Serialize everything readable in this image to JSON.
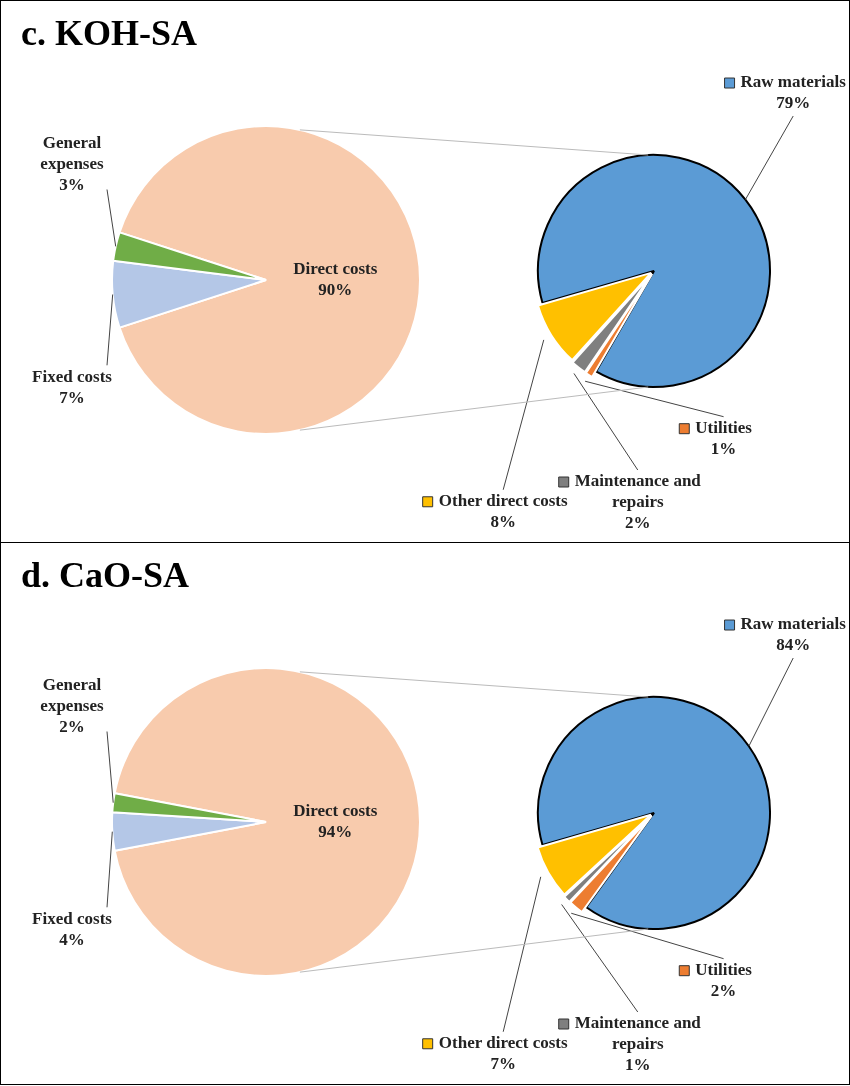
{
  "chart_data": [
    {
      "type": "pie",
      "title": "c. KOH-SA",
      "categories": [
        "Direct costs",
        "Fixed costs",
        "General expenses"
      ],
      "values": [
        90,
        7,
        3
      ],
      "colors": [
        "#f8cbad",
        "#b4c7e7",
        "#70ad47"
      ],
      "value_labels": [
        "90%",
        "7%",
        "3%"
      ]
    },
    {
      "type": "pie",
      "categories": [
        "Raw materials",
        "Utilities",
        "Maintenance and repairs",
        "Other direct costs"
      ],
      "values": [
        79,
        1,
        2,
        8
      ],
      "colors": [
        "#5b9bd5",
        "#ed7d31",
        "#7f7f7f",
        "#ffc000"
      ],
      "value_labels": [
        "79%",
        "1%",
        "2%",
        "8%"
      ],
      "legend": "bottom left"
    },
    {
      "type": "pie",
      "title": "d. CaO-SA",
      "categories": [
        "Direct costs",
        "Fixed costs",
        "General expenses"
      ],
      "values": [
        94,
        4,
        2
      ],
      "colors": [
        "#f8cbad",
        "#b4c7e7",
        "#70ad47"
      ],
      "value_labels": [
        "94%",
        "4%",
        "2%"
      ]
    },
    {
      "type": "pie",
      "categories": [
        "Raw materials",
        "Utilities",
        "Maintenance and repairs",
        "Other direct costs"
      ],
      "values": [
        84,
        2,
        1,
        7
      ],
      "colors": [
        "#5b9bd5",
        "#ed7d31",
        "#7f7f7f",
        "#ffc000"
      ],
      "value_labels": [
        "84%",
        "2%",
        "1%",
        "7%"
      ],
      "legend": "bottom left"
    }
  ]
}
